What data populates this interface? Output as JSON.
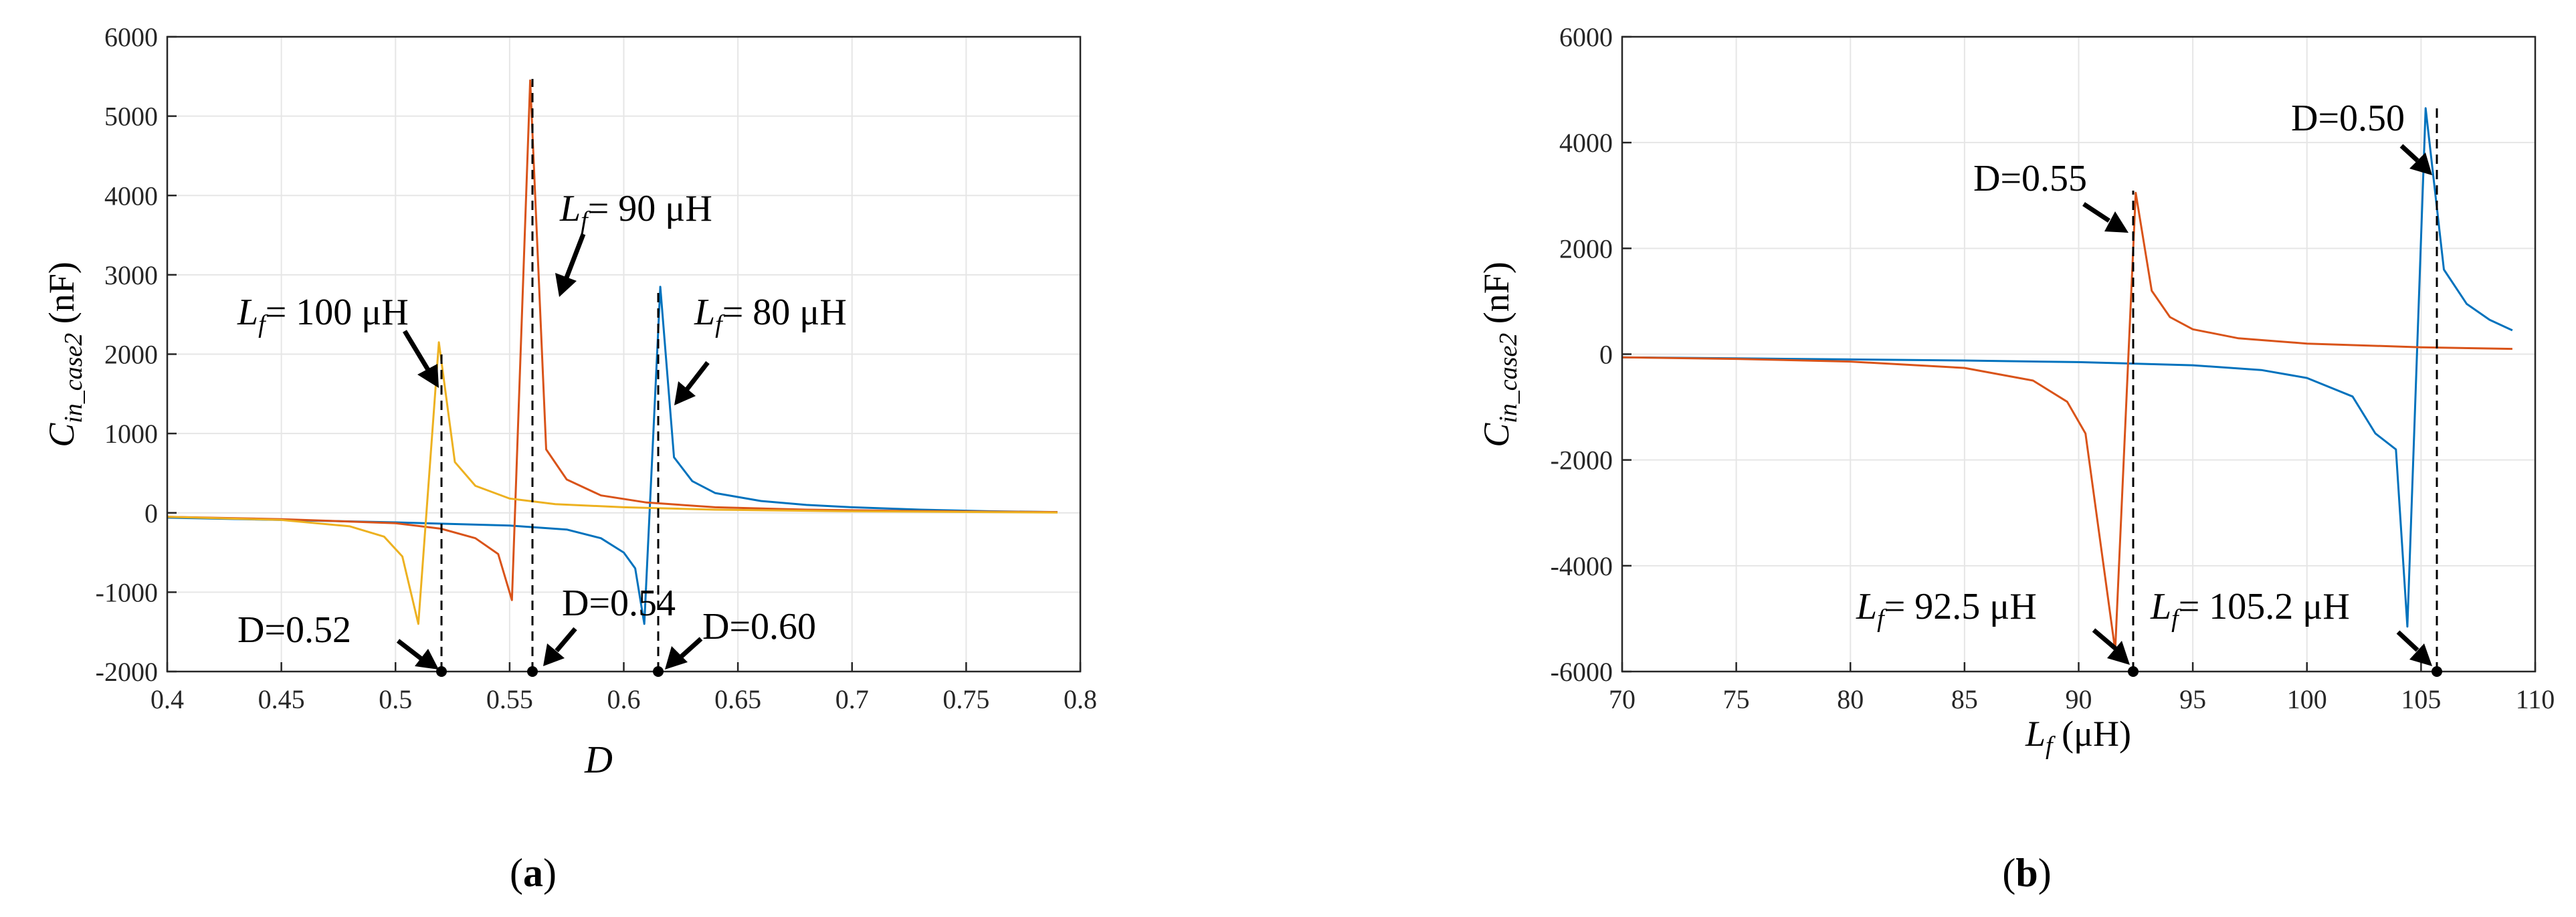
{
  "chart_data": [
    {
      "type": "line",
      "panel_label": "(a)",
      "xlabel": "D",
      "ylabel": "C_in_case2 (nF)",
      "xlim": [
        0.4,
        0.8
      ],
      "ylim": [
        -2000,
        6000
      ],
      "xticks": [
        "0.4",
        "0.45",
        "0.5",
        "0.55",
        "0.6",
        "0.65",
        "0.7",
        "0.75",
        "0.8"
      ],
      "yticks": [
        "-2000",
        "-1000",
        "0",
        "1000",
        "2000",
        "3000",
        "4000",
        "5000",
        "6000"
      ],
      "grid": true,
      "series": [
        {
          "color": "#0072BD",
          "x": [
            0.4,
            0.45,
            0.5,
            0.55,
            0.575,
            0.59,
            0.6,
            0.605,
            0.609,
            0.616,
            0.622,
            0.63,
            0.64,
            0.66,
            0.68,
            0.7,
            0.73,
            0.76,
            0.79
          ],
          "y": [
            -60,
            -90,
            -120,
            -160,
            -210,
            -320,
            -500,
            -700,
            -1400,
            2850,
            700,
            400,
            250,
            150,
            100,
            70,
            40,
            20,
            10
          ]
        },
        {
          "color": "#D95319",
          "x": [
            0.4,
            0.45,
            0.5,
            0.52,
            0.535,
            0.545,
            0.551,
            0.559,
            0.566,
            0.575,
            0.59,
            0.61,
            0.64,
            0.68,
            0.72,
            0.76,
            0.79
          ],
          "y": [
            -50,
            -80,
            -130,
            -200,
            -320,
            -520,
            -1100,
            5450,
            800,
            420,
            220,
            130,
            70,
            40,
            25,
            15,
            10
          ]
        },
        {
          "color": "#EDB120",
          "x": [
            0.4,
            0.45,
            0.48,
            0.495,
            0.503,
            0.51,
            0.519,
            0.526,
            0.535,
            0.55,
            0.57,
            0.6,
            0.64,
            0.7,
            0.76,
            0.79
          ],
          "y": [
            -50,
            -90,
            -170,
            -300,
            -550,
            -1400,
            2150,
            640,
            340,
            180,
            110,
            70,
            40,
            20,
            10,
            5
          ]
        }
      ],
      "annotations": [
        {
          "sub": "f",
          "text": "= 100 μH"
        },
        {
          "sub": "f",
          "text": "= 90 μH"
        },
        {
          "sub": "f",
          "text": "= 80 μH"
        },
        {
          "text": "D=0.52"
        },
        {
          "text": "D=0.54"
        },
        {
          "text": "D=0.60"
        }
      ]
    },
    {
      "type": "line",
      "panel_label": "(b)",
      "xlabel": "L_f (μH)",
      "ylabel": "C_in_case2 (nF)",
      "xlim": [
        70,
        110
      ],
      "ylim": [
        -6000,
        6000
      ],
      "xticks": [
        "70",
        "75",
        "80",
        "85",
        "90",
        "95",
        "100",
        "105",
        "110"
      ],
      "yticks": [
        "-6000",
        "-4000",
        "-2000",
        "0",
        "2000",
        "4000",
        "6000"
      ],
      "grid": true,
      "series": [
        {
          "color": "#0072BD",
          "x": [
            70,
            75,
            80,
            85,
            90,
            95,
            98,
            100,
            102,
            103,
            103.9,
            104.4,
            105.2,
            106,
            107,
            108,
            109
          ],
          "y": [
            -60,
            -80,
            -100,
            -120,
            -150,
            -210,
            -300,
            -450,
            -800,
            -1500,
            -1800,
            -5150,
            4650,
            1600,
            950,
            650,
            450
          ]
        },
        {
          "color": "#D95319",
          "x": [
            70,
            75,
            80,
            85,
            88,
            89.5,
            90.3,
            91.6,
            92.5,
            93.2,
            94,
            95,
            97,
            100,
            105,
            109
          ],
          "y": [
            -60,
            -90,
            -140,
            -260,
            -500,
            -900,
            -1500,
            -5600,
            3050,
            1200,
            700,
            470,
            300,
            200,
            130,
            100
          ]
        }
      ],
      "annotations": [
        {
          "text": "D=0.55"
        },
        {
          "text": "D=0.50"
        },
        {
          "sub": "f",
          "text": "= 92.5 μH"
        },
        {
          "sub": "f",
          "text": "= 105.2 μH"
        }
      ]
    }
  ]
}
